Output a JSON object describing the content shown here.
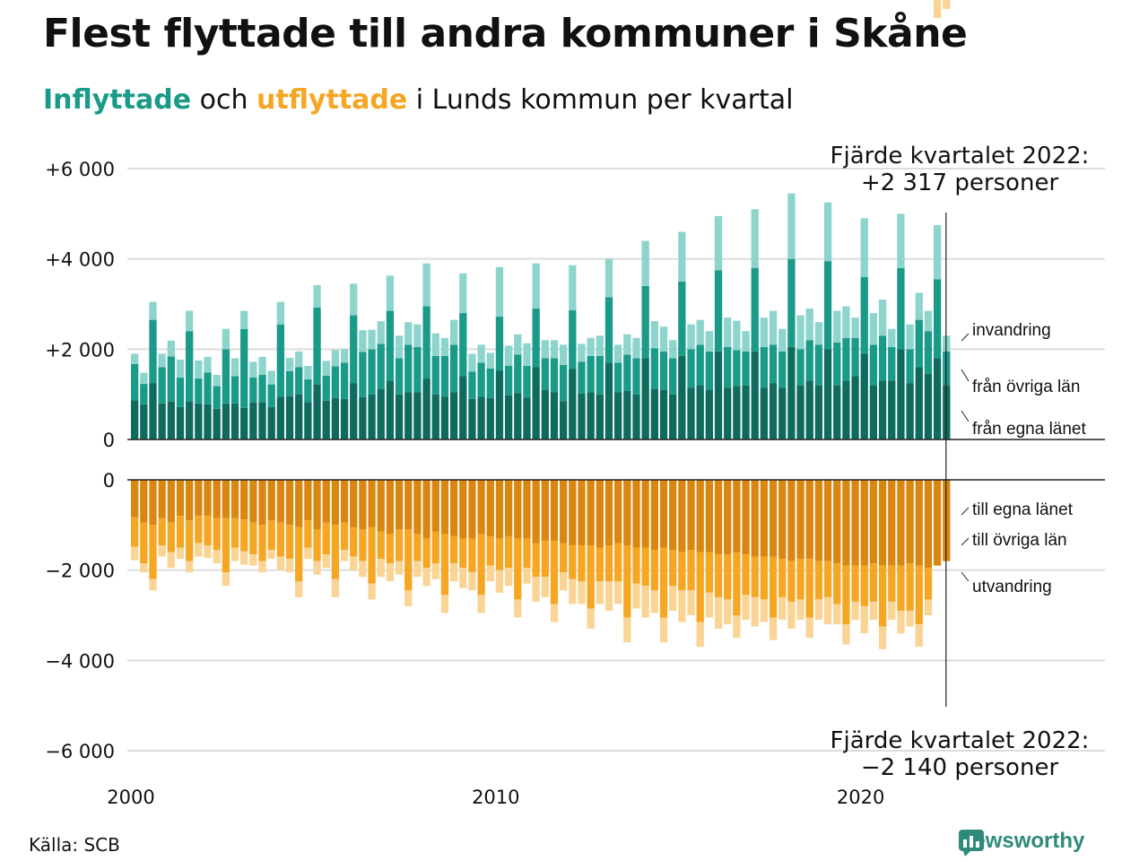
{
  "title": "Flest flyttade till andra kommuner i Skåne",
  "subtitle": {
    "in": "Inflyttade",
    "mid": " och ",
    "out": "utflyttade",
    "rest": " i Lunds kommun per kvartal"
  },
  "source": "Källa: SCB",
  "brand": "Newsworthy",
  "colors": {
    "in_own": "#0e6b5e",
    "in_other": "#1a9a88",
    "in_immigration": "#8dd5cc",
    "out_own": "#d98710",
    "out_other": "#f5a623",
    "out_emigration": "#f9d495",
    "grid": "#dddddd",
    "axis": "#222222"
  },
  "chart_data": {
    "type": "bar",
    "stacked": true,
    "categories_start_year": 2000,
    "quarters_per_year": 4,
    "x_tick_labels": [
      "2000",
      "2010",
      "2020"
    ],
    "ylim_top": [
      0,
      6000
    ],
    "ylim_bottom": [
      -6000,
      0
    ],
    "y_ticks_top": [
      {
        "v": 0,
        "label": "0"
      },
      {
        "v": 2000,
        "label": "+2 000"
      },
      {
        "v": 4000,
        "label": "+4 000"
      },
      {
        "v": 6000,
        "label": "+6 000"
      }
    ],
    "y_ticks_bottom": [
      {
        "v": 0,
        "label": "0"
      },
      {
        "v": -2000,
        "label": "−2 000"
      },
      {
        "v": -4000,
        "label": "−4 000"
      },
      {
        "v": -6000,
        "label": "−6 000"
      }
    ],
    "series_labels": {
      "in_own": "från egna länet",
      "in_other": "från övriga län",
      "in_immigration": "invandring",
      "out_own": "till egna länet",
      "out_other": "till övriga län",
      "out_emigration": "utvandring"
    },
    "annotation_top": {
      "line1": "Fjärde kvartalet 2022:",
      "line2": "+2 317 personer"
    },
    "annotation_bottom": {
      "line1": "Fjärde kvartalet 2022:",
      "line2": "−2 140 personer"
    },
    "inflow": {
      "own": [
        870,
        780,
        1250,
        800,
        840,
        720,
        850,
        800,
        780,
        680,
        800,
        800,
        700,
        820,
        830,
        720,
        950,
        960,
        1000,
        830,
        1220,
        860,
        920,
        900,
        1250,
        940,
        1000,
        1120,
        1300,
        1000,
        1050,
        1050,
        1350,
        1000,
        950,
        1050,
        1400,
        900,
        950,
        920,
        1520,
        980,
        1030,
        930,
        1600,
        1100,
        1050,
        850,
        1560,
        1020,
        1050,
        1000,
        1700,
        1050,
        1080,
        1000,
        1800,
        1120,
        1100,
        1000,
        1850,
        1150,
        1200,
        1100,
        1950,
        1150,
        1180,
        1200,
        1950,
        1150,
        1250,
        1150,
        2050,
        1200,
        1300,
        1200,
        2000,
        1200,
        1300,
        1400,
        1900,
        1200,
        1300,
        1300,
        2000,
        1250,
        1600,
        1450,
        1800,
        1200
      ],
      "other": [
        800,
        450,
        1400,
        800,
        1000,
        650,
        1550,
        550,
        700,
        500,
        1200,
        600,
        1750,
        550,
        600,
        500,
        1600,
        550,
        600,
        500,
        1700,
        550,
        700,
        800,
        1500,
        1000,
        1000,
        1000,
        1550,
        800,
        1050,
        1000,
        1600,
        850,
        900,
        1050,
        1400,
        600,
        750,
        650,
        1200,
        650,
        850,
        700,
        1300,
        700,
        750,
        800,
        1300,
        700,
        800,
        850,
        1450,
        650,
        800,
        800,
        1600,
        900,
        850,
        800,
        1650,
        850,
        900,
        850,
        1800,
        900,
        800,
        750,
        1850,
        900,
        850,
        800,
        1950,
        800,
        900,
        900,
        1950,
        950,
        950,
        850,
        1700,
        900,
        1000,
        750,
        1800,
        750,
        1050,
        950,
        1750,
        750
      ],
      "imm": [
        230,
        250,
        400,
        300,
        350,
        400,
        450,
        400,
        350,
        250,
        450,
        400,
        400,
        350,
        400,
        300,
        500,
        300,
        350,
        300,
        500,
        330,
        360,
        300,
        700,
        480,
        430,
        500,
        780,
        500,
        500,
        500,
        950,
        500,
        400,
        550,
        880,
        400,
        400,
        350,
        1100,
        450,
        450,
        500,
        1000,
        400,
        400,
        450,
        1000,
        400,
        400,
        450,
        850,
        400,
        450,
        450,
        1000,
        600,
        550,
        400,
        1100,
        550,
        550,
        450,
        1200,
        650,
        650,
        450,
        1300,
        650,
        750,
        500,
        1450,
        750,
        700,
        500,
        1300,
        700,
        700,
        450,
        1300,
        700,
        800,
        400,
        1200,
        550,
        600,
        450,
        1200,
        350
      ]
    },
    "outflow": {
      "own": [
        830,
        950,
        1000,
        850,
        950,
        800,
        900,
        800,
        800,
        850,
        850,
        850,
        880,
        950,
        1000,
        900,
        950,
        1000,
        1050,
        900,
        1100,
        950,
        1000,
        950,
        1050,
        1100,
        1050,
        1150,
        1200,
        1100,
        1100,
        1200,
        1300,
        1150,
        1200,
        1250,
        1300,
        1300,
        1200,
        1250,
        1300,
        1250,
        1300,
        1300,
        1400,
        1350,
        1350,
        1400,
        1450,
        1450,
        1450,
        1500,
        1450,
        1400,
        1450,
        1500,
        1500,
        1550,
        1500,
        1550,
        1600,
        1550,
        1600,
        1600,
        1650,
        1650,
        1600,
        1650,
        1700,
        1700,
        1700,
        1750,
        1800,
        1750,
        1750,
        1800,
        1800,
        1850,
        1900,
        1900,
        1900,
        1850,
        1900,
        1900,
        1900,
        1850,
        1900,
        1950,
        1900,
        1800
      ],
      "other": [
        650,
        900,
        1200,
        600,
        650,
        700,
        900,
        600,
        650,
        700,
        1200,
        650,
        700,
        700,
        800,
        650,
        750,
        750,
        1200,
        600,
        700,
        700,
        1200,
        600,
        650,
        700,
        1250,
        600,
        650,
        700,
        1350,
        600,
        650,
        700,
        1350,
        600,
        650,
        750,
        1350,
        650,
        700,
        700,
        1350,
        650,
        750,
        800,
        1400,
        650,
        750,
        800,
        1400,
        750,
        800,
        850,
        1600,
        800,
        850,
        900,
        1550,
        800,
        850,
        900,
        1550,
        900,
        950,
        1000,
        1400,
        900,
        900,
        950,
        1350,
        850,
        900,
        900,
        1300,
        850,
        800,
        900,
        1300,
        800,
        900,
        850,
        1350,
        800,
        1000,
        1050,
        1300,
        700
      ],
      "emi": [
        300,
        200,
        250,
        250,
        350,
        250,
        250,
        300,
        280,
        300,
        300,
        300,
        300,
        250,
        250,
        200,
        300,
        300,
        350,
        250,
        300,
        300,
        400,
        250,
        300,
        350,
        350,
        400,
        400,
        300,
        350,
        350,
        400,
        350,
        400,
        400,
        450,
        400,
        400,
        350,
        500,
        400,
        400,
        350,
        550,
        450,
        400,
        400,
        550,
        500,
        450,
        500,
        650,
        500,
        550,
        550,
        700,
        500,
        550,
        550,
        700,
        550,
        550,
        550,
        700,
        550,
        500,
        550,
        650,
        500,
        500,
        500,
        600,
        450,
        450,
        450,
        600,
        450,
        450,
        400,
        600,
        400,
        500,
        400,
        500,
        350,
        500,
        350,
        400,
        200
      ]
    }
  }
}
